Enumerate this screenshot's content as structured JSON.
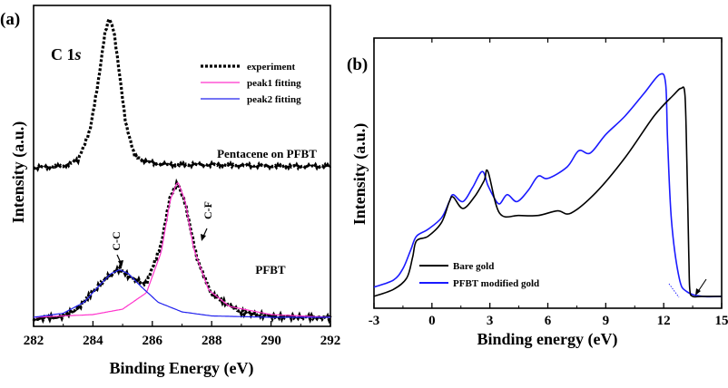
{
  "chart_data": [
    {
      "panel": "(a)",
      "type": "line",
      "title": "C 1s",
      "xlabel": "Binding Energy (eV)",
      "ylabel": "Intensity (a.u.)",
      "xlim": [
        282,
        292
      ],
      "xticks": [
        "282",
        "284",
        "286",
        "288",
        "290",
        "292"
      ],
      "legend_position": "top-right",
      "legend": [
        {
          "label": "experiment",
          "color": "#000000",
          "style": "dotted"
        },
        {
          "label": "peak1 fitting",
          "color": "#ff33cc",
          "style": "solid"
        },
        {
          "label": "peak2 fitting",
          "color": "#2222ee",
          "style": "solid"
        }
      ],
      "annotations": {
        "top_curve": "Pentacene on PFBT",
        "bottom_curve": "PFBT",
        "peak_cc": "C-C",
        "peak_cf": "C-F"
      },
      "series": [
        {
          "name": "experiment",
          "curve": "Pentacene on PFBT",
          "x": [
            282.0,
            283.0,
            283.5,
            283.9,
            284.2,
            284.4,
            284.55,
            284.7,
            284.9,
            285.1,
            285.4,
            285.8,
            286.5,
            288.0,
            290.0,
            292.0
          ],
          "y": [
            0.0,
            0.01,
            0.05,
            0.25,
            0.6,
            0.9,
            1.0,
            0.92,
            0.62,
            0.3,
            0.08,
            0.04,
            0.02,
            0.02,
            0.01,
            0.01
          ]
        },
        {
          "name": "experiment",
          "curve": "PFBT",
          "x": [
            282.0,
            283.0,
            283.5,
            284.0,
            284.5,
            284.9,
            285.3,
            285.8,
            286.3,
            286.6,
            286.85,
            287.1,
            287.5,
            288.0,
            289.0,
            290.0,
            292.0
          ],
          "y": [
            0.0,
            0.02,
            0.08,
            0.2,
            0.31,
            0.37,
            0.3,
            0.26,
            0.55,
            0.9,
            1.0,
            0.86,
            0.45,
            0.18,
            0.05,
            0.02,
            0.01
          ]
        },
        {
          "name": "peak1 fitting",
          "x": [
            282.0,
            284.0,
            285.0,
            285.8,
            286.3,
            286.6,
            286.85,
            287.1,
            287.4,
            287.9,
            288.6,
            290.0,
            292.0
          ],
          "y": [
            0.0,
            0.02,
            0.06,
            0.18,
            0.48,
            0.86,
            1.0,
            0.86,
            0.5,
            0.2,
            0.08,
            0.02,
            0.0
          ]
        },
        {
          "name": "peak2 fitting",
          "x": [
            282.0,
            283.0,
            283.7,
            284.2,
            284.6,
            284.9,
            285.2,
            285.6,
            286.2,
            287.0,
            288.0,
            290.0,
            292.0
          ],
          "y": [
            0.0,
            0.03,
            0.11,
            0.23,
            0.32,
            0.35,
            0.32,
            0.23,
            0.11,
            0.04,
            0.01,
            0.0,
            0.0
          ]
        }
      ]
    },
    {
      "panel": "(b)",
      "type": "line",
      "xlabel": "Binding energy (eV)",
      "ylabel": "Intensity (a.u.)",
      "xlim": [
        -3,
        15
      ],
      "xticks": [
        "-3",
        "0",
        "3",
        "6",
        "9",
        "12",
        "15"
      ],
      "legend_position": "bottom-left",
      "legend": [
        {
          "label": "Bare gold",
          "color": "#000000"
        },
        {
          "label": "PFBT modified gold",
          "color": "#1a1aff"
        }
      ],
      "series": [
        {
          "name": "Bare gold",
          "x": [
            -3.0,
            -2.0,
            -1.3,
            -1.0,
            -0.8,
            -0.2,
            0.5,
            0.9,
            1.1,
            1.6,
            2.2,
            2.7,
            2.9,
            3.5,
            4.5,
            5.5,
            6.5,
            7.2,
            8.5,
            10.0,
            11.5,
            12.5,
            12.9,
            13.1,
            13.2,
            13.3,
            13.35,
            13.5,
            14.0,
            15.0
          ],
          "y": [
            0.02,
            0.05,
            0.1,
            0.19,
            0.26,
            0.28,
            0.34,
            0.43,
            0.45,
            0.4,
            0.45,
            0.52,
            0.56,
            0.38,
            0.37,
            0.37,
            0.39,
            0.38,
            0.47,
            0.62,
            0.8,
            0.89,
            0.92,
            0.89,
            0.6,
            0.2,
            0.05,
            0.02,
            0.02,
            0.02
          ]
        },
        {
          "name": "PFBT modified gold",
          "x": [
            -3.0,
            -2.0,
            -1.5,
            -1.1,
            -0.8,
            -0.2,
            0.5,
            0.9,
            1.1,
            1.6,
            2.1,
            2.6,
            2.9,
            3.2,
            3.5,
            3.9,
            4.4,
            5.0,
            5.5,
            6.0,
            7.0,
            7.6,
            8.2,
            9.0,
            10.0,
            11.0,
            11.8,
            12.1,
            12.2,
            12.4,
            12.8,
            13.2,
            14.0,
            15.0
          ],
          "y": [
            0.06,
            0.09,
            0.14,
            0.22,
            0.28,
            0.31,
            0.36,
            0.43,
            0.46,
            0.43,
            0.49,
            0.56,
            0.5,
            0.45,
            0.42,
            0.46,
            0.43,
            0.48,
            0.54,
            0.53,
            0.58,
            0.65,
            0.64,
            0.72,
            0.8,
            0.9,
            0.98,
            0.94,
            0.7,
            0.35,
            0.1,
            0.04,
            0.02,
            0.02
          ]
        }
      ]
    }
  ]
}
